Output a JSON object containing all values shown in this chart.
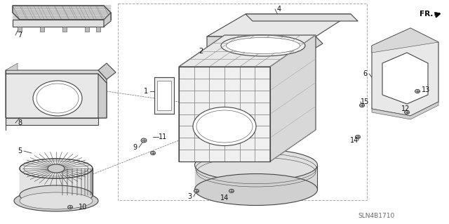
{
  "bg_color": "#ffffff",
  "fig_width": 6.4,
  "fig_height": 3.19,
  "dpi": 100,
  "diagram_code": "SLN4B1710",
  "lc": "#444444",
  "lc_light": "#888888",
  "lw": 0.8,
  "lw_thin": 0.4,
  "lw_thick": 1.2,
  "fc_light": "#f0f0f0",
  "fc_mid": "#e0e0e0",
  "fc_dark": "#cccccc",
  "hatch_color": "#aaaaaa"
}
